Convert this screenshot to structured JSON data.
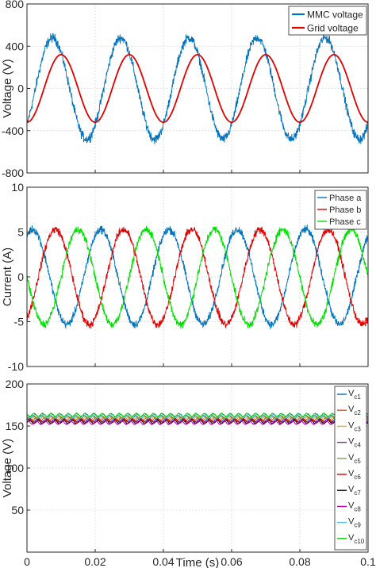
{
  "chart_data": [
    {
      "type": "line",
      "xlabel": "",
      "ylabel": "Voltage (V)",
      "xlim": [
        0,
        0.1
      ],
      "ylim": [
        -800,
        800
      ],
      "yticks": [
        -800,
        -400,
        0,
        400,
        800
      ],
      "xticks": [
        0,
        0.02,
        0.04,
        0.06,
        0.08,
        0.1
      ],
      "grid": true,
      "legend_placement": "top-right",
      "series": [
        {
          "name": "MMC voltage",
          "color": "#0072BD",
          "amplitude": 480,
          "frequency_hz": 50,
          "phase_deg": -45,
          "noise": 45
        },
        {
          "name": "Grid voltage",
          "color": "#E00000",
          "amplitude": 320,
          "frequency_hz": 50,
          "phase_deg": -90,
          "noise": 0
        }
      ]
    },
    {
      "type": "line",
      "xlabel": "",
      "ylabel": "Current (A)",
      "xlim": [
        0,
        0.1
      ],
      "ylim": [
        -10,
        10
      ],
      "yticks": [
        -10,
        -5,
        0,
        5,
        10
      ],
      "xticks": [
        0,
        0.02,
        0.04,
        0.06,
        0.08,
        0.1
      ],
      "grid": true,
      "legend_placement": "top-right",
      "series": [
        {
          "name": "Phase a",
          "color": "#0072BD",
          "amplitude": 5.3,
          "frequency_hz": 50,
          "phase_deg": 60,
          "noise": 0.45
        },
        {
          "name": "Phase b",
          "color": "#E00000",
          "amplitude": 5.3,
          "frequency_hz": 50,
          "phase_deg": -60,
          "noise": 0.45
        },
        {
          "name": "Phase c",
          "color": "#00E000",
          "amplitude": 5.3,
          "frequency_hz": 50,
          "phase_deg": 180,
          "noise": 0.45
        }
      ]
    },
    {
      "type": "line",
      "xlabel": "Time (s)",
      "ylabel": "Voltage (V)",
      "xlim": [
        0,
        0.1
      ],
      "ylim": [
        0,
        200
      ],
      "yticks": [
        50,
        100,
        150,
        200
      ],
      "xticks": [
        0,
        0.02,
        0.04,
        0.06,
        0.08,
        0.1
      ],
      "xticklabels": [
        "0",
        "0.02",
        "0.04",
        "0.06",
        "0.08",
        "0.1"
      ],
      "grid": true,
      "legend_placement": "right",
      "series": [
        {
          "name": "V",
          "sub": "c1",
          "color": "#0072BD",
          "mean": 157,
          "ripple": 2
        },
        {
          "name": "V",
          "sub": "c2",
          "color": "#D95319",
          "mean": 158,
          "ripple": 2
        },
        {
          "name": "V",
          "sub": "c3",
          "color": "#EDB120",
          "mean": 159,
          "ripple": 2
        },
        {
          "name": "V",
          "sub": "c4",
          "color": "#7E2F8E",
          "mean": 160,
          "ripple": 2
        },
        {
          "name": "V",
          "sub": "c5",
          "color": "#77AC30",
          "mean": 161,
          "ripple": 2
        },
        {
          "name": "V",
          "sub": "c6",
          "color": "#E00000",
          "mean": 156,
          "ripple": 2
        },
        {
          "name": "V",
          "sub": "c7",
          "color": "#000000",
          "mean": 155,
          "ripple": 2
        },
        {
          "name": "V",
          "sub": "c8",
          "color": "#C000C0",
          "mean": 154,
          "ripple": 2
        },
        {
          "name": "V",
          "sub": "c9",
          "color": "#4DBEEE",
          "mean": 162,
          "ripple": 2
        },
        {
          "name": "V",
          "sub": "c10",
          "color": "#00D000",
          "mean": 163,
          "ripple": 2
        }
      ]
    }
  ]
}
